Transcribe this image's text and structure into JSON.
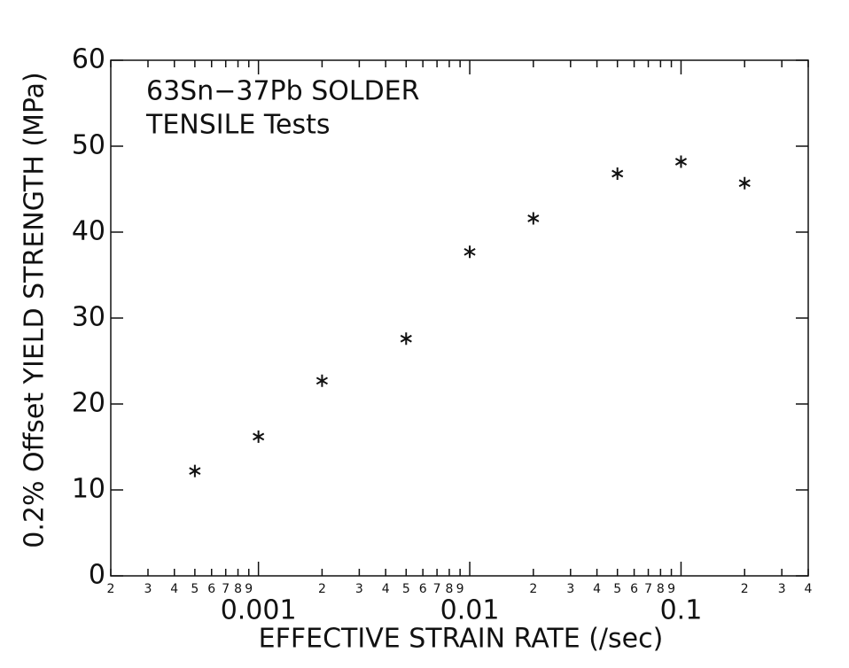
{
  "chart_data": {
    "type": "scatter",
    "title": "63Sn−37Pb SOLDER",
    "subtitle": "TENSILE Tests",
    "x_label": "EFFECTIVE STRAIN RATE (/sec)",
    "y_label": "0.2% Offset YIELD STRENGTH (MPa)",
    "x_scale": "log",
    "x": [
      0.0005,
      0.001,
      0.002,
      0.005,
      0.01,
      0.02,
      0.05,
      0.1,
      0.2
    ],
    "y": [
      12.2,
      16.2,
      22.7,
      27.6,
      37.7,
      41.6,
      46.8,
      48.2,
      45.7
    ],
    "color": "#111111",
    "marker": "*",
    "xlim": [
      0.0002,
      0.4
    ],
    "ylim": [
      0,
      60
    ],
    "yticks": [
      0,
      10,
      20,
      30,
      40,
      50,
      60
    ],
    "xticks": [
      {
        "value": 0.0002,
        "label": "2"
      },
      {
        "value": 0.0003,
        "label": "3"
      },
      {
        "value": 0.0004,
        "label": "4"
      },
      {
        "value": 0.0005,
        "label": "5"
      },
      {
        "value": 0.0006,
        "label": "6"
      },
      {
        "value": 0.0007,
        "label": "7"
      },
      {
        "value": 0.0008,
        "label": "8"
      },
      {
        "value": 0.0009,
        "label": "9"
      },
      0.001,
      {
        "value": 0.002,
        "label": "2"
      },
      {
        "value": 0.003,
        "label": "3"
      },
      {
        "value": 0.004,
        "label": "4"
      },
      {
        "value": 0.005,
        "label": "5"
      },
      {
        "value": 0.006,
        "label": "6"
      },
      {
        "value": 0.007,
        "label": "7"
      },
      {
        "value": 0.008,
        "label": "8"
      },
      {
        "value": 0.009,
        "label": "9"
      },
      0.01,
      {
        "value": 0.02,
        "label": "2"
      },
      {
        "value": 0.03,
        "label": "3"
      },
      {
        "value": 0.04,
        "label": "4"
      },
      {
        "value": 0.05,
        "label": "5"
      },
      {
        "value": 0.06,
        "label": "6"
      },
      {
        "value": 0.07,
        "label": "7"
      },
      {
        "value": 0.08,
        "label": "8"
      },
      {
        "value": 0.09,
        "label": "9"
      },
      0.1,
      {
        "value": 0.2,
        "label": "2"
      },
      {
        "value": 0.3,
        "label": "3"
      },
      {
        "value": 0.4,
        "label": "4"
      }
    ]
  }
}
